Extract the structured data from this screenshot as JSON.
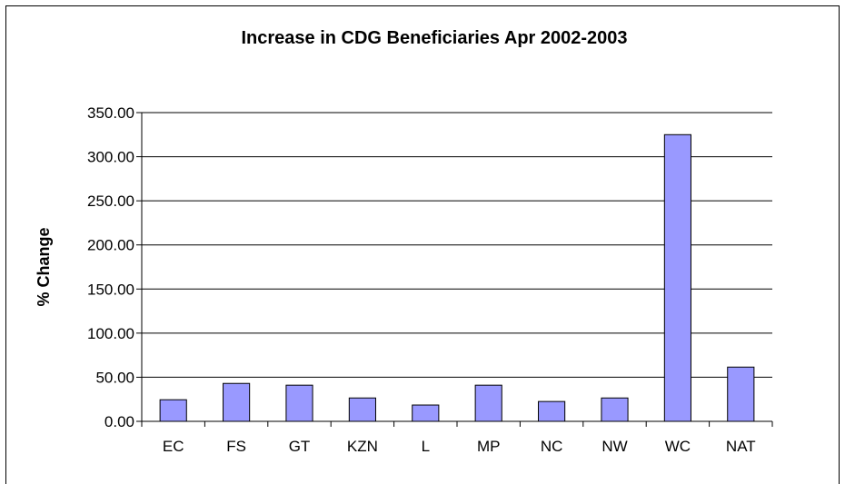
{
  "chart_data": {
    "type": "bar",
    "title": "Increase in CDG Beneficiaries Apr 2002-2003",
    "xlabel": "",
    "ylabel": "% Change",
    "categories": [
      "EC",
      "FS",
      "GT",
      "KZN",
      "L",
      "MP",
      "NC",
      "NW",
      "WC",
      "NAT"
    ],
    "values": [
      24.5,
      43.0,
      41.0,
      26.5,
      18.5,
      41.0,
      22.5,
      26.5,
      325.0,
      61.5
    ],
    "ylim": [
      0,
      350
    ],
    "yticks": [
      "0.00",
      "50.00",
      "100.00",
      "150.00",
      "200.00",
      "250.00",
      "300.00",
      "350.00"
    ],
    "grid": true,
    "legend": "none",
    "bar_color": "#9999ff"
  }
}
